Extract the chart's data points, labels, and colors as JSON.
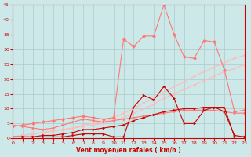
{
  "x": [
    0,
    1,
    2,
    3,
    4,
    5,
    6,
    7,
    8,
    9,
    10,
    11,
    12,
    13,
    14,
    15,
    16,
    17,
    18,
    19,
    20,
    21,
    22,
    23
  ],
  "line_light1": [
    0.5,
    1.0,
    1.5,
    2.0,
    2.5,
    3.0,
    3.5,
    4.5,
    5.0,
    5.5,
    7.0,
    8.5,
    10.0,
    12.0,
    13.5,
    15.5,
    17.5,
    19.0,
    21.0,
    22.5,
    24.0,
    25.5,
    27.0,
    28.0
  ],
  "line_light2": [
    0.5,
    1.0,
    1.5,
    2.0,
    2.5,
    3.0,
    3.5,
    4.0,
    4.5,
    5.0,
    6.0,
    7.0,
    8.5,
    10.0,
    11.5,
    13.5,
    15.0,
    16.5,
    18.0,
    19.5,
    21.0,
    22.5,
    23.5,
    25.0
  ],
  "line_med1": [
    4.5,
    4.0,
    3.5,
    3.0,
    3.5,
    4.5,
    5.5,
    6.5,
    6.0,
    5.5,
    6.0,
    6.5,
    7.0,
    7.5,
    8.0,
    8.5,
    9.0,
    9.5,
    9.5,
    9.5,
    9.5,
    9.0,
    8.5,
    8.5
  ],
  "line_med2": [
    4.0,
    4.5,
    5.0,
    5.5,
    6.0,
    6.5,
    7.0,
    7.5,
    7.0,
    6.5,
    7.0,
    33.5,
    31.0,
    34.5,
    34.5,
    45.0,
    35.0,
    27.5,
    27.0,
    33.0,
    32.5,
    23.0,
    9.0,
    9.5
  ],
  "line_dark1": [
    0.5,
    0.5,
    0.5,
    0.5,
    0.5,
    0.5,
    1.0,
    1.5,
    1.5,
    1.5,
    0.5,
    0.5,
    10.5,
    14.5,
    13.0,
    17.5,
    13.5,
    5.0,
    5.0,
    9.5,
    10.5,
    10.5,
    0.5,
    0.5
  ],
  "line_dark2": [
    0.5,
    0.5,
    0.5,
    1.0,
    1.0,
    1.5,
    2.0,
    3.0,
    3.0,
    3.5,
    4.0,
    4.5,
    6.0,
    7.0,
    8.0,
    9.0,
    9.5,
    10.0,
    10.0,
    10.5,
    10.5,
    9.0,
    1.0,
    0.5
  ],
  "color_light": "#ffbbbb",
  "color_med": "#ff7777",
  "color_dark": "#cc0000",
  "background": "#cce8e8",
  "grid_color": "#aacccc",
  "xlabel": "Vent moyen/en rafales ( km/h )",
  "xlim": [
    0,
    23
  ],
  "ylim": [
    0,
    45
  ],
  "yticks": [
    0,
    5,
    10,
    15,
    20,
    25,
    30,
    35,
    40,
    45
  ],
  "xticks": [
    0,
    1,
    2,
    3,
    4,
    5,
    6,
    7,
    8,
    9,
    10,
    11,
    12,
    13,
    14,
    15,
    16,
    17,
    18,
    19,
    20,
    21,
    22,
    23
  ]
}
